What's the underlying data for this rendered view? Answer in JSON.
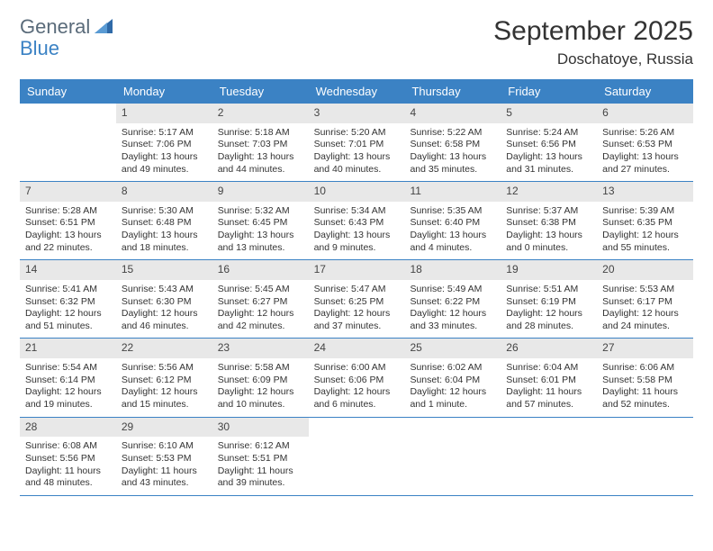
{
  "logo": {
    "top": "General",
    "bottom": "Blue"
  },
  "title": "September 2025",
  "location": "Doschatoye, Russia",
  "colors": {
    "header_bg": "#3b82c4",
    "daynum_bg": "#e8e8e8",
    "text": "#333333",
    "logo_gray": "#5a6b7a",
    "logo_blue": "#3b82c4",
    "page_bg": "#ffffff"
  },
  "fonts": {
    "title_size": 30,
    "location_size": 17,
    "dow_size": 13,
    "daynum_size": 12,
    "body_size": 10.5
  },
  "dow": [
    "Sunday",
    "Monday",
    "Tuesday",
    "Wednesday",
    "Thursday",
    "Friday",
    "Saturday"
  ],
  "weeks": [
    [
      null,
      {
        "n": "1",
        "sr": "Sunrise: 5:17 AM",
        "ss": "Sunset: 7:06 PM",
        "d1": "Daylight: 13 hours",
        "d2": "and 49 minutes."
      },
      {
        "n": "2",
        "sr": "Sunrise: 5:18 AM",
        "ss": "Sunset: 7:03 PM",
        "d1": "Daylight: 13 hours",
        "d2": "and 44 minutes."
      },
      {
        "n": "3",
        "sr": "Sunrise: 5:20 AM",
        "ss": "Sunset: 7:01 PM",
        "d1": "Daylight: 13 hours",
        "d2": "and 40 minutes."
      },
      {
        "n": "4",
        "sr": "Sunrise: 5:22 AM",
        "ss": "Sunset: 6:58 PM",
        "d1": "Daylight: 13 hours",
        "d2": "and 35 minutes."
      },
      {
        "n": "5",
        "sr": "Sunrise: 5:24 AM",
        "ss": "Sunset: 6:56 PM",
        "d1": "Daylight: 13 hours",
        "d2": "and 31 minutes."
      },
      {
        "n": "6",
        "sr": "Sunrise: 5:26 AM",
        "ss": "Sunset: 6:53 PM",
        "d1": "Daylight: 13 hours",
        "d2": "and 27 minutes."
      }
    ],
    [
      {
        "n": "7",
        "sr": "Sunrise: 5:28 AM",
        "ss": "Sunset: 6:51 PM",
        "d1": "Daylight: 13 hours",
        "d2": "and 22 minutes."
      },
      {
        "n": "8",
        "sr": "Sunrise: 5:30 AM",
        "ss": "Sunset: 6:48 PM",
        "d1": "Daylight: 13 hours",
        "d2": "and 18 minutes."
      },
      {
        "n": "9",
        "sr": "Sunrise: 5:32 AM",
        "ss": "Sunset: 6:45 PM",
        "d1": "Daylight: 13 hours",
        "d2": "and 13 minutes."
      },
      {
        "n": "10",
        "sr": "Sunrise: 5:34 AM",
        "ss": "Sunset: 6:43 PM",
        "d1": "Daylight: 13 hours",
        "d2": "and 9 minutes."
      },
      {
        "n": "11",
        "sr": "Sunrise: 5:35 AM",
        "ss": "Sunset: 6:40 PM",
        "d1": "Daylight: 13 hours",
        "d2": "and 4 minutes."
      },
      {
        "n": "12",
        "sr": "Sunrise: 5:37 AM",
        "ss": "Sunset: 6:38 PM",
        "d1": "Daylight: 13 hours",
        "d2": "and 0 minutes."
      },
      {
        "n": "13",
        "sr": "Sunrise: 5:39 AM",
        "ss": "Sunset: 6:35 PM",
        "d1": "Daylight: 12 hours",
        "d2": "and 55 minutes."
      }
    ],
    [
      {
        "n": "14",
        "sr": "Sunrise: 5:41 AM",
        "ss": "Sunset: 6:32 PM",
        "d1": "Daylight: 12 hours",
        "d2": "and 51 minutes."
      },
      {
        "n": "15",
        "sr": "Sunrise: 5:43 AM",
        "ss": "Sunset: 6:30 PM",
        "d1": "Daylight: 12 hours",
        "d2": "and 46 minutes."
      },
      {
        "n": "16",
        "sr": "Sunrise: 5:45 AM",
        "ss": "Sunset: 6:27 PM",
        "d1": "Daylight: 12 hours",
        "d2": "and 42 minutes."
      },
      {
        "n": "17",
        "sr": "Sunrise: 5:47 AM",
        "ss": "Sunset: 6:25 PM",
        "d1": "Daylight: 12 hours",
        "d2": "and 37 minutes."
      },
      {
        "n": "18",
        "sr": "Sunrise: 5:49 AM",
        "ss": "Sunset: 6:22 PM",
        "d1": "Daylight: 12 hours",
        "d2": "and 33 minutes."
      },
      {
        "n": "19",
        "sr": "Sunrise: 5:51 AM",
        "ss": "Sunset: 6:19 PM",
        "d1": "Daylight: 12 hours",
        "d2": "and 28 minutes."
      },
      {
        "n": "20",
        "sr": "Sunrise: 5:53 AM",
        "ss": "Sunset: 6:17 PM",
        "d1": "Daylight: 12 hours",
        "d2": "and 24 minutes."
      }
    ],
    [
      {
        "n": "21",
        "sr": "Sunrise: 5:54 AM",
        "ss": "Sunset: 6:14 PM",
        "d1": "Daylight: 12 hours",
        "d2": "and 19 minutes."
      },
      {
        "n": "22",
        "sr": "Sunrise: 5:56 AM",
        "ss": "Sunset: 6:12 PM",
        "d1": "Daylight: 12 hours",
        "d2": "and 15 minutes."
      },
      {
        "n": "23",
        "sr": "Sunrise: 5:58 AM",
        "ss": "Sunset: 6:09 PM",
        "d1": "Daylight: 12 hours",
        "d2": "and 10 minutes."
      },
      {
        "n": "24",
        "sr": "Sunrise: 6:00 AM",
        "ss": "Sunset: 6:06 PM",
        "d1": "Daylight: 12 hours",
        "d2": "and 6 minutes."
      },
      {
        "n": "25",
        "sr": "Sunrise: 6:02 AM",
        "ss": "Sunset: 6:04 PM",
        "d1": "Daylight: 12 hours",
        "d2": "and 1 minute."
      },
      {
        "n": "26",
        "sr": "Sunrise: 6:04 AM",
        "ss": "Sunset: 6:01 PM",
        "d1": "Daylight: 11 hours",
        "d2": "and 57 minutes."
      },
      {
        "n": "27",
        "sr": "Sunrise: 6:06 AM",
        "ss": "Sunset: 5:58 PM",
        "d1": "Daylight: 11 hours",
        "d2": "and 52 minutes."
      }
    ],
    [
      {
        "n": "28",
        "sr": "Sunrise: 6:08 AM",
        "ss": "Sunset: 5:56 PM",
        "d1": "Daylight: 11 hours",
        "d2": "and 48 minutes."
      },
      {
        "n": "29",
        "sr": "Sunrise: 6:10 AM",
        "ss": "Sunset: 5:53 PM",
        "d1": "Daylight: 11 hours",
        "d2": "and 43 minutes."
      },
      {
        "n": "30",
        "sr": "Sunrise: 6:12 AM",
        "ss": "Sunset: 5:51 PM",
        "d1": "Daylight: 11 hours",
        "d2": "and 39 minutes."
      },
      null,
      null,
      null,
      null
    ]
  ]
}
